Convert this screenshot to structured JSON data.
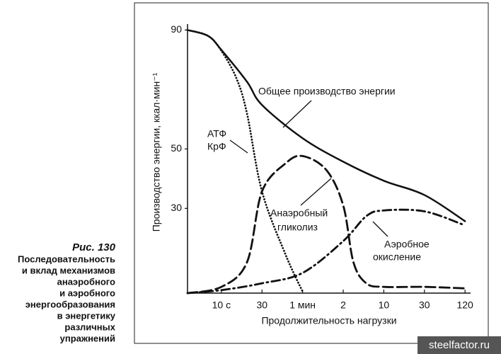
{
  "chart_data": {
    "type": "line",
    "figure_label": "Рис. 130",
    "caption": [
      "Последовательность",
      "и вклад механизмов",
      "анаэробного",
      "и аэробного",
      "энергообразования",
      "в энергетику",
      "различных",
      "упражнений"
    ],
    "x_label": "Продолжительность нагрузки",
    "y_label": "Производство энергии, ккал·мин⁻¹",
    "xlim": [
      4,
      8700
    ],
    "xticks": [
      {
        "value": 10,
        "label": "10 с"
      },
      30,
      {
        "value": 60,
        "label": "1 мин"
      },
      {
        "value": 120,
        "label": "2"
      },
      {
        "value": 600,
        "label": "10"
      },
      {
        "value": 1800,
        "label": "30"
      },
      {
        "value": 7200,
        "label": "120"
      }
    ],
    "ylim": [
      1.5,
      92
    ],
    "yticks": [
      30,
      50,
      90
    ],
    "series": [
      {
        "labels": [
          "Общее производство энергии"
        ],
        "style": "solid",
        "color": "#111111",
        "x": [
          4,
          7,
          10,
          20,
          30,
          60,
          120,
          600,
          1800,
          7200
        ],
        "values": [
          90,
          88,
          83.3,
          72.6,
          64.8,
          53.6,
          45.7,
          39.3,
          34.5,
          25.7
        ]
      },
      {
        "labels": [
          "АТФ",
          "КрФ"
        ],
        "style": "dotted",
        "color": "#111111",
        "x": [
          4,
          7,
          10,
          15,
          20,
          30,
          45,
          60
        ],
        "values": [
          90,
          88,
          83,
          73.8,
          61.9,
          35.7,
          14.3,
          2
        ]
      },
      {
        "labels": [
          "Анаэробный",
          "гликолиз"
        ],
        "style": "dashed",
        "color": "#111111",
        "x": [
          4,
          10,
          20,
          30,
          45,
          60,
          90,
          120,
          180,
          300,
          600,
          1800,
          7200
        ],
        "values": [
          1.5,
          3.6,
          11.9,
          35.7,
          45.2,
          47.6,
          42.9,
          31,
          11.9,
          4.8,
          3.6,
          3.6,
          3.1
        ]
      },
      {
        "labels": [
          "Аэробное",
          "окисление"
        ],
        "style": "dashdot",
        "color": "#111111",
        "x": [
          4,
          10,
          30,
          60,
          120,
          300,
          600,
          1800,
          7200
        ],
        "values": [
          1.5,
          2.5,
          4.8,
          8.3,
          19,
          27.4,
          29.3,
          29,
          24.3
        ]
      }
    ],
    "watermark": "steelfactor.ru"
  }
}
